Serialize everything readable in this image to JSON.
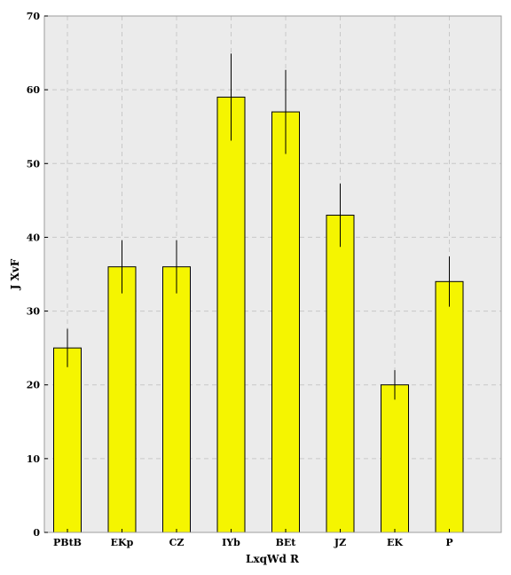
{
  "chart_data": {
    "type": "bar",
    "categories": [
      "PBtB",
      "EKp",
      "CZ",
      "IYb",
      "BEt",
      "JZ",
      "EK",
      "P"
    ],
    "values": [
      25,
      36,
      36,
      59,
      57,
      43,
      20,
      34
    ],
    "errors": [
      2.6,
      3.6,
      3.6,
      5.9,
      5.7,
      4.3,
      2.0,
      3.4
    ],
    "xlabel": "LxqWd R",
    "ylabel": "J XvF",
    "ylim": [
      0,
      70
    ],
    "yticks": [
      0,
      10,
      20,
      30,
      40,
      50,
      60,
      70
    ],
    "grid": true,
    "colors": {
      "bar": "#f5f500",
      "bar_edge": "#000000",
      "plot_background": "#ebebeb",
      "grid": "#c8c8c8",
      "error_bar": "#000000"
    }
  }
}
